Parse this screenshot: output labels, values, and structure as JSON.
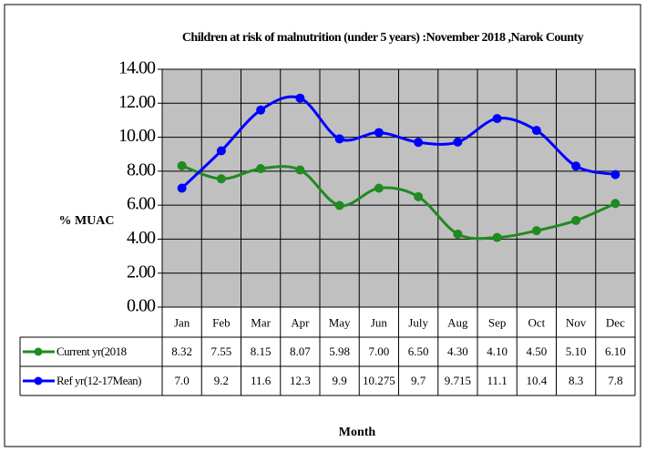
{
  "chart_data": {
    "type": "line",
    "title": "Children at risk of malnutrition (under 5 years) :November 2018 ,Narok County",
    "y_label": "% MUAC",
    "x_label": "Month",
    "categories": [
      "Jan",
      "Feb",
      "Mar",
      "Apr",
      "May",
      "Jun",
      "July",
      "Aug",
      "Sep",
      "Oct",
      "Nov",
      "Dec"
    ],
    "series": [
      {
        "name": "Current yr(2018",
        "color": "#218a21",
        "values": [
          8.32,
          7.55,
          8.15,
          8.07,
          5.98,
          7.0,
          6.5,
          4.3,
          4.1,
          4.5,
          5.1,
          6.1
        ],
        "value_labels": [
          "8.32",
          "7.55",
          "8.15",
          "8.07",
          "5.98",
          "7.00",
          "6.50",
          "4.30",
          "4.10",
          "4.50",
          "5.10",
          "6.10"
        ]
      },
      {
        "name": "Ref yr(12-17Mean)",
        "color": "#0000ff",
        "values": [
          7.0,
          9.2,
          11.6,
          12.3,
          9.9,
          10.275,
          9.7,
          9.715,
          11.1,
          10.4,
          8.3,
          7.8
        ],
        "value_labels": [
          "7.0",
          "9.2",
          "11.6",
          "12.3",
          "9.9",
          "10.275",
          "9.7",
          "9.715",
          "11.1",
          "10.4",
          "8.3",
          "7.8"
        ]
      }
    ],
    "ylim": [
      0,
      14
    ],
    "yticks": [
      {
        "value": 0,
        "label": "0.00"
      },
      {
        "value": 2,
        "label": "2.00"
      },
      {
        "value": 4,
        "label": "4.00"
      },
      {
        "value": 6,
        "label": "6.00"
      },
      {
        "value": 8,
        "label": "8.00"
      },
      {
        "value": 10,
        "label": "10.00"
      },
      {
        "value": 12,
        "label": "12.00"
      },
      {
        "value": 14,
        "label": "14.00"
      }
    ],
    "grid": true,
    "smooth": true
  }
}
